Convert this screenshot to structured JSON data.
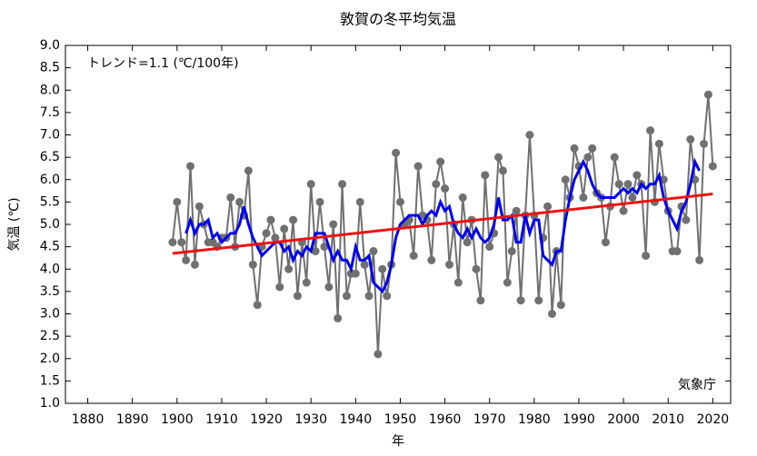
{
  "chart_data": {
    "type": "line",
    "title": "敦賀の冬平均気温",
    "xlabel": "年",
    "ylabel": "気温 (℃)",
    "annotation": "トレンド=1.1 (℃/100年)",
    "source": "気象庁",
    "xlim": [
      1875,
      2024
    ],
    "ylim": [
      1.0,
      9.0
    ],
    "xticks": [
      1880,
      1890,
      1900,
      1910,
      1920,
      1930,
      1940,
      1950,
      1960,
      1970,
      1980,
      1990,
      2000,
      2010,
      2020
    ],
    "yticks": [
      {
        "value": 1.0,
        "label": "1.0"
      },
      {
        "value": 1.5,
        "label": "1.5"
      },
      {
        "value": 2.0,
        "label": "2.0"
      },
      {
        "value": 2.5,
        "label": "2.5"
      },
      {
        "value": 3.0,
        "label": "3.0"
      },
      {
        "value": 3.5,
        "label": "3.5"
      },
      {
        "value": 4.0,
        "label": "4.0"
      },
      {
        "value": 4.5,
        "label": "4.5"
      },
      {
        "value": 5.0,
        "label": "5.0"
      },
      {
        "value": 5.5,
        "label": "5.5"
      },
      {
        "value": 6.0,
        "label": "6.0"
      },
      {
        "value": 6.5,
        "label": "6.5"
      },
      {
        "value": 7.0,
        "label": "7.0"
      },
      {
        "value": 7.5,
        "label": "7.5"
      },
      {
        "value": 8.0,
        "label": "8.0"
      },
      {
        "value": 8.5,
        "label": "8.5"
      },
      {
        "value": 9.0,
        "label": "9.0"
      }
    ],
    "series": [
      {
        "color": "#707070",
        "markers": true,
        "x": [
          1899,
          1900,
          1901,
          1902,
          1903,
          1904,
          1905,
          1906,
          1907,
          1908,
          1909,
          1910,
          1911,
          1912,
          1913,
          1914,
          1915,
          1916,
          1917,
          1918,
          1919,
          1920,
          1921,
          1922,
          1923,
          1924,
          1925,
          1926,
          1927,
          1928,
          1929,
          1930,
          1931,
          1932,
          1933,
          1934,
          1935,
          1936,
          1937,
          1938,
          1939,
          1940,
          1941,
          1942,
          1943,
          1944,
          1945,
          1946,
          1947,
          1948,
          1949,
          1950,
          1951,
          1952,
          1953,
          1954,
          1955,
          1956,
          1957,
          1958,
          1959,
          1960,
          1961,
          1962,
          1963,
          1964,
          1965,
          1966,
          1967,
          1968,
          1969,
          1970,
          1971,
          1972,
          1973,
          1974,
          1975,
          1976,
          1977,
          1978,
          1979,
          1980,
          1981,
          1982,
          1983,
          1984,
          1985,
          1986,
          1987,
          1988,
          1989,
          1990,
          1991,
          1992,
          1993,
          1994,
          1995,
          1996,
          1997,
          1998,
          1999,
          2000,
          2001,
          2002,
          2003,
          2004,
          2005,
          2006,
          2007,
          2008,
          2009,
          2010,
          2011,
          2012,
          2013,
          2014,
          2015,
          2016,
          2017,
          2018,
          2019,
          2020
        ],
        "values": [
          4.6,
          5.5,
          4.6,
          4.2,
          6.3,
          4.1,
          5.4,
          5.0,
          4.6,
          4.6,
          4.5,
          4.7,
          4.7,
          5.6,
          4.5,
          5.5,
          5.2,
          6.2,
          4.1,
          3.2,
          4.5,
          4.8,
          5.1,
          4.7,
          3.6,
          4.9,
          4.0,
          5.1,
          3.4,
          4.6,
          3.7,
          5.9,
          4.4,
          5.5,
          4.5,
          3.6,
          5.0,
          2.9,
          5.9,
          3.4,
          3.9,
          3.9,
          5.5,
          4.1,
          3.4,
          4.4,
          2.1,
          4.0,
          3.4,
          4.1,
          6.6,
          5.5,
          5.0,
          5.1,
          4.3,
          6.3,
          5.2,
          5.1,
          4.2,
          5.9,
          6.4,
          5.8,
          4.1,
          5.0,
          3.7,
          5.6,
          4.6,
          5.1,
          4.0,
          3.3,
          6.1,
          4.5,
          4.8,
          6.5,
          6.2,
          3.7,
          4.4,
          5.3,
          3.3,
          5.2,
          7.0,
          5.2,
          3.3,
          4.7,
          5.4,
          3.0,
          4.4,
          3.2,
          6.0,
          5.6,
          6.7,
          6.3,
          5.6,
          6.5,
          6.7,
          5.7,
          5.6,
          4.6,
          5.4,
          6.5,
          5.9,
          5.3,
          5.9,
          5.6,
          6.1,
          5.9,
          4.3,
          7.1,
          5.5,
          6.8,
          6.0,
          5.3,
          4.4,
          4.4,
          5.4,
          5.1,
          6.9,
          6.0,
          4.2,
          6.8,
          7.9,
          6.3
        ]
      },
      {
        "color": "#0000ee",
        "markers": false,
        "x": [
          1902,
          1903,
          1904,
          1905,
          1906,
          1907,
          1908,
          1909,
          1910,
          1911,
          1912,
          1913,
          1914,
          1915,
          1916,
          1917,
          1918,
          1919,
          1920,
          1921,
          1922,
          1923,
          1924,
          1925,
          1926,
          1927,
          1928,
          1929,
          1930,
          1931,
          1932,
          1933,
          1934,
          1935,
          1936,
          1937,
          1938,
          1939,
          1940,
          1941,
          1942,
          1943,
          1944,
          1945,
          1946,
          1947,
          1948,
          1949,
          1950,
          1951,
          1952,
          1953,
          1954,
          1955,
          1956,
          1957,
          1958,
          1959,
          1960,
          1961,
          1962,
          1963,
          1964,
          1965,
          1966,
          1967,
          1968,
          1969,
          1970,
          1971,
          1972,
          1973,
          1974,
          1975,
          1976,
          1977,
          1978,
          1979,
          1980,
          1981,
          1982,
          1983,
          1984,
          1985,
          1986,
          1987,
          1988,
          1989,
          1990,
          1991,
          1992,
          1993,
          1994,
          1995,
          1996,
          1997,
          1998,
          1999,
          2000,
          2001,
          2002,
          2003,
          2004,
          2005,
          2006,
          2007,
          2008,
          2009,
          2010,
          2011,
          2012,
          2013,
          2014,
          2015,
          2016,
          2017
        ],
        "values": [
          4.8,
          5.1,
          4.8,
          5.0,
          5.0,
          5.1,
          4.7,
          4.8,
          4.6,
          4.7,
          4.8,
          4.8,
          5.0,
          5.4,
          5.0,
          4.7,
          4.5,
          4.3,
          4.4,
          4.5,
          4.6,
          4.6,
          4.4,
          4.5,
          4.2,
          4.4,
          4.3,
          4.5,
          4.4,
          4.8,
          4.8,
          4.8,
          4.5,
          4.2,
          4.4,
          4.2,
          4.2,
          4.0,
          4.5,
          4.2,
          4.2,
          4.3,
          3.7,
          3.6,
          3.5,
          3.7,
          4.1,
          4.7,
          5.0,
          5.1,
          5.2,
          5.2,
          5.2,
          5.0,
          5.2,
          5.3,
          5.2,
          5.5,
          5.3,
          5.4,
          5.0,
          4.8,
          4.7,
          4.9,
          4.7,
          4.9,
          4.7,
          4.6,
          4.7,
          5.0,
          5.6,
          5.1,
          5.1,
          5.2,
          4.6,
          4.6,
          5.2,
          4.8,
          5.1,
          5.1,
          4.3,
          4.2,
          4.1,
          4.4,
          4.4,
          5.1,
          5.6,
          6.0,
          6.2,
          6.4,
          6.2,
          5.9,
          5.7,
          5.6,
          5.6,
          5.6,
          5.6,
          5.7,
          5.8,
          5.7,
          5.8,
          5.7,
          5.9,
          5.8,
          5.9,
          5.9,
          6.1,
          5.6,
          5.3,
          5.1,
          4.9,
          5.3,
          5.5,
          5.9,
          6.4,
          6.2
        ]
      },
      {
        "color": "#ee1111",
        "markers": false,
        "x": [
          1899,
          2020
        ],
        "values": [
          4.35,
          5.68
        ]
      }
    ]
  }
}
